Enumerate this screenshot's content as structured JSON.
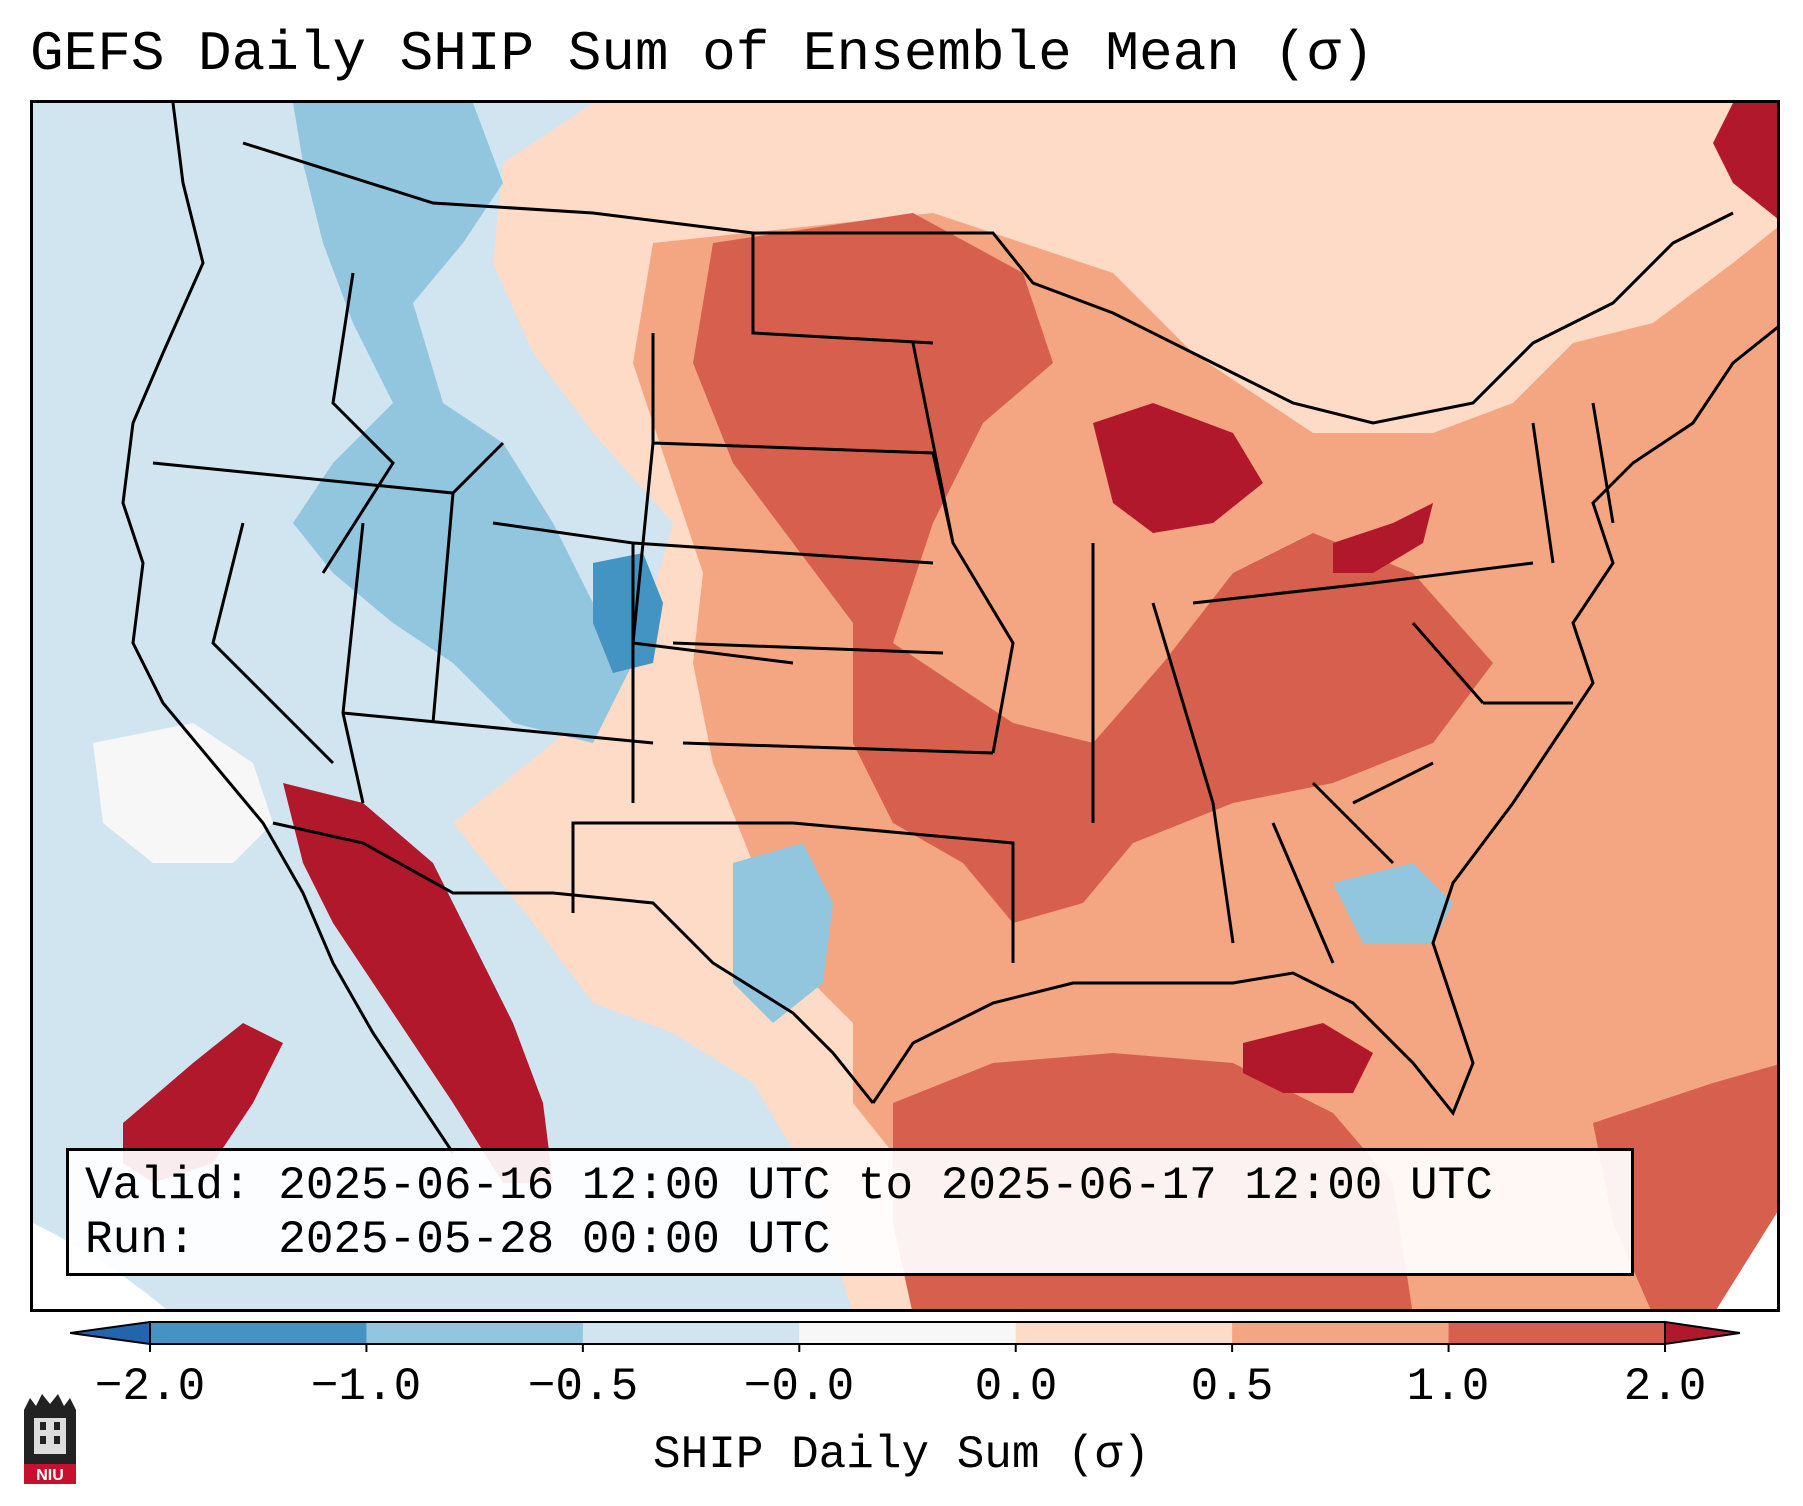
{
  "title": "GEFS Daily SHIP Sum of Ensemble Mean (σ)",
  "info": {
    "valid_line": "Valid: 2025-06-16 12:00 UTC to 2025-06-17 12:00 UTC",
    "run_line": "Run:   2025-05-28 00:00 UTC"
  },
  "colorbar": {
    "label": "SHIP Daily Sum (σ)",
    "ticks": [
      "−2.0",
      "−1.0",
      "−0.5",
      "−0.0",
      "0.0",
      "0.5",
      "1.0",
      "2.0"
    ],
    "colors": [
      "#2166ac",
      "#4393c3",
      "#92c5de",
      "#d1e5f0",
      "#f7f7f7",
      "#fddbc7",
      "#f4a582",
      "#d6604d",
      "#b2182b"
    ]
  },
  "logo": {
    "text": "NIU"
  },
  "colors": {
    "very_negative": "#4393c3",
    "negative": "#92c5de",
    "slightly_negative": "#d1e5f0",
    "neutral": "#f7f7f7",
    "slightly_positive": "#fddbc7",
    "positive": "#f4a582",
    "strong_positive": "#d6604d",
    "very_positive": "#b2182b"
  }
}
